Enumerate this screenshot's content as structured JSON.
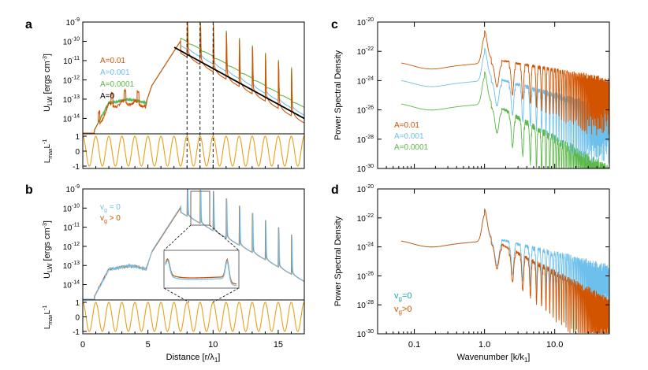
{
  "colors": {
    "orange": "#d35400",
    "blue": "#6ec0ec",
    "green": "#5cb848",
    "black": "#000000",
    "gold": "#e6a11a"
  },
  "panel_letters": [
    "a",
    "b",
    "c",
    "d"
  ],
  "shared": {
    "x_ticks": [
      "0",
      "5",
      "10",
      "15"
    ],
    "x_label": "Distance [r/λ",
    "x_label_sub": "1",
    "x_label_end": "]",
    "u_label": "U",
    "u_label_sub": "LW",
    "u_label_rest": " [ergs cm",
    "u_label_sup": "-3",
    "u_label_end": "]",
    "l_label": "L",
    "l_label_sub": "max",
    "l_label_rest": "L",
    "l_label_sup": "-1",
    "l_ticks": [
      "1",
      "0",
      "-1"
    ],
    "u_ticks": [
      {
        "base": "10",
        "exp": "-9"
      },
      {
        "base": "10",
        "exp": "-10"
      },
      {
        "base": "10",
        "exp": "-11"
      },
      {
        "base": "10",
        "exp": "-12"
      },
      {
        "base": "10",
        "exp": "-13"
      },
      {
        "base": "10",
        "exp": "-14"
      }
    ],
    "psd_label": "Power Spectral Density",
    "k_label": "Wavenumber [k/k",
    "k_label_sub": "1",
    "k_label_end": "]",
    "k_ticks": [
      "0.1",
      "1.0",
      "10.0"
    ],
    "p_ticks": [
      {
        "base": "10",
        "exp": "-20"
      },
      {
        "base": "10",
        "exp": "-22"
      },
      {
        "base": "10",
        "exp": "-24"
      },
      {
        "base": "10",
        "exp": "-26"
      },
      {
        "base": "10",
        "exp": "-28"
      },
      {
        "base": "10",
        "exp": "-30"
      }
    ]
  },
  "chart_data": [
    {
      "panel": "a",
      "type": "line",
      "xlabel": "Distance [r/λ1]",
      "ylabel": "U_LW [ergs cm^-3]",
      "xlim": [
        0,
        17
      ],
      "ylim_log10": [
        -14.8,
        -9
      ],
      "series": [
        {
          "name": "A=0.01",
          "color": "orange"
        },
        {
          "name": "A=0.001",
          "color": "blue"
        },
        {
          "name": "A=0.0001",
          "color": "green"
        },
        {
          "name": "A=0",
          "color": "black"
        }
      ],
      "legend": [
        {
          "text": "A=0.01",
          "color": "orange"
        },
        {
          "text": "A=0.001",
          "color": "blue"
        },
        {
          "text": "A=0.0001",
          "color": "green"
        },
        {
          "text": "A=0",
          "color": "black"
        }
      ],
      "dashed_lines_x": [
        8,
        9,
        10
      ],
      "lower_panel": {
        "ylabel": "L_max L^-1",
        "ylim": [
          -1,
          1
        ],
        "period": 1
      }
    },
    {
      "panel": "b",
      "type": "line",
      "xlabel": "Distance [r/λ1]",
      "ylabel": "U_LW [ergs cm^-3]",
      "xlim": [
        0,
        17
      ],
      "ylim_log10": [
        -14.8,
        -9
      ],
      "series": [
        {
          "name": "vg = 0",
          "color": "blue"
        },
        {
          "name": "vg > 0",
          "color": "orange"
        }
      ],
      "legend": [
        {
          "base": "v",
          "sub": "g",
          "rest": " = 0",
          "color": "blue"
        },
        {
          "base": "v",
          "sub": "g",
          "rest": " > 0",
          "color": "orange"
        }
      ],
      "inset": "zoom of peaks near r = 8-9",
      "lower_panel": {
        "ylabel": "L_max L^-1",
        "ylim": [
          -1,
          1
        ],
        "period": 1
      }
    },
    {
      "panel": "c",
      "type": "line",
      "xlabel": "Wavenumber [k/k1]",
      "ylabel": "Power Spectral Density",
      "xscale": "log",
      "xlim": [
        0.03,
        60
      ],
      "ylim_log10": [
        -30,
        -20
      ],
      "series": [
        {
          "name": "A=0.01",
          "color": "orange"
        },
        {
          "name": "A=0.001",
          "color": "blue"
        },
        {
          "name": "A=0.0001",
          "color": "green"
        }
      ],
      "legend": [
        {
          "text": "A=0.01",
          "color": "orange"
        },
        {
          "text": "A=0.001",
          "color": "blue"
        },
        {
          "text": "A=0.0001",
          "color": "green"
        }
      ]
    },
    {
      "panel": "d",
      "type": "line",
      "xlabel": "Wavenumber [k/k1]",
      "ylabel": "Power Spectral Density",
      "xscale": "log",
      "xlim": [
        0.03,
        60
      ],
      "ylim_log10": [
        -30,
        -20
      ],
      "series": [
        {
          "name": "vg=0",
          "color": "blue"
        },
        {
          "name": "vg>0",
          "color": "orange"
        }
      ],
      "legend": [
        {
          "base": "v",
          "sub": "g",
          "rest": "=0",
          "color": "blue"
        },
        {
          "base": "v",
          "sub": "g",
          "rest": ">0",
          "color": "orange"
        }
      ]
    }
  ]
}
